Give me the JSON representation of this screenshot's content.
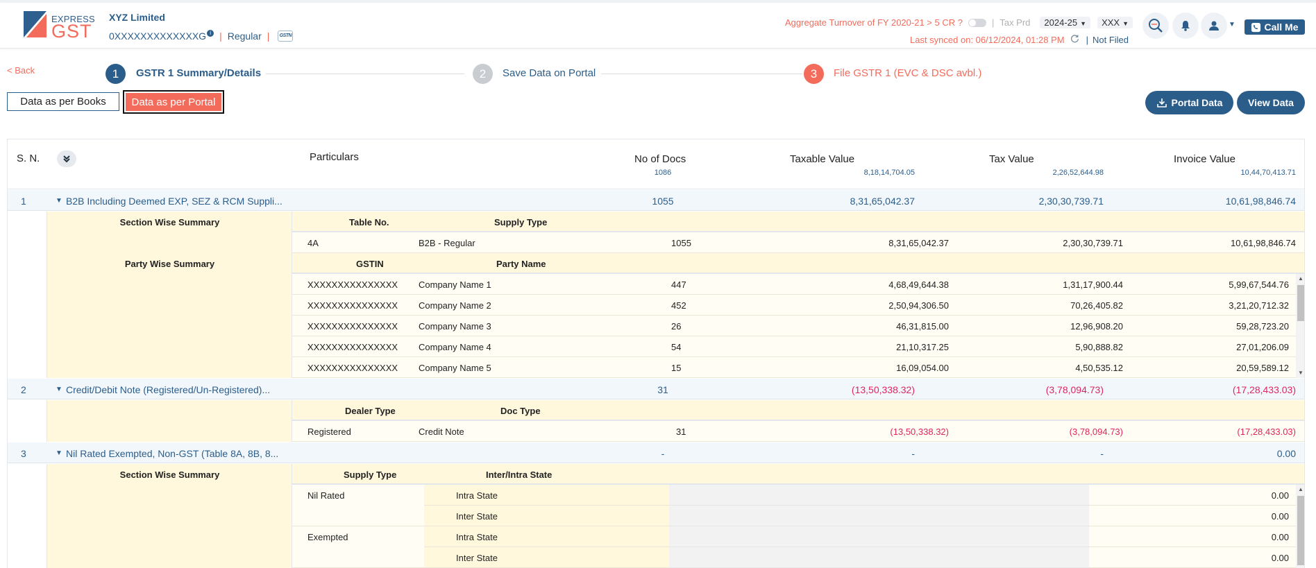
{
  "header": {
    "logo_express": "EXPRESS",
    "logo_gst": "GST",
    "company": "XYZ Limited",
    "gstin": "0XXXXXXXXXXXXXG",
    "info_glyph": "i",
    "separator": "|",
    "registration_type": "Regular",
    "gstn_badge": "GSTN",
    "turnover_text": "Aggregate Turnover of FY 2020-21 > 5 CR ?",
    "tax_period_label": "Tax Prd",
    "fy_value": "2024-25",
    "period_value": "XXX",
    "last_synced": "Last synced on: 06/12/2024, 01:28 PM",
    "filing_status": "Not Filed",
    "call_me": "Call Me"
  },
  "stepper": {
    "back": "< Back",
    "steps": [
      {
        "num": "1",
        "label": "GSTR 1 Summary/Details"
      },
      {
        "num": "2",
        "label": "Save Data on Portal"
      },
      {
        "num": "3",
        "label": "File GSTR 1 (EVC & DSC avbl.)"
      }
    ]
  },
  "tabs": {
    "books": "Data as per Books",
    "portal": "Data as per Portal"
  },
  "actions": {
    "portal_data": "Portal Data",
    "view_data": "View Data"
  },
  "colors": {
    "primary": "#2b5d8a",
    "accent": "#f26b5b",
    "negative": "#e0245e",
    "highlight": "#fff8dd"
  },
  "table": {
    "headers": {
      "sn": "S. N.",
      "particulars": "Particulars",
      "docs": "No of Docs",
      "taxable": "Taxable Value",
      "tax": "Tax Value",
      "invoice": "Invoice Value"
    },
    "totals": {
      "docs": "1086",
      "taxable": "8,18,14,704.05",
      "tax": "2,26,52,644.98",
      "invoice": "10,44,70,413.71"
    },
    "sections": [
      {
        "sn": "1",
        "title": "B2B Including Deemed EXP, SEZ & RCM Suppli...",
        "docs": "1055",
        "taxable": "8,31,65,042.37",
        "tax": "2,30,30,739.71",
        "invoice": "10,61,98,846.74",
        "section_summary": {
          "label": "Section Wise Summary",
          "col1": "Table No.",
          "col2": "Supply Type",
          "rows": [
            {
              "c1": "4A",
              "c2": "B2B - Regular",
              "docs": "1055",
              "taxable": "8,31,65,042.37",
              "tax": "2,30,30,739.71",
              "invoice": "10,61,98,846.74"
            }
          ]
        },
        "party_summary": {
          "label": "Party Wise Summary",
          "col1": "GSTIN",
          "col2": "Party Name",
          "rows": [
            {
              "c1": "XXXXXXXXXXXXXXX",
              "c2": "Company Name 1",
              "docs": "447",
              "taxable": "4,68,49,644.38",
              "tax": "1,31,17,900.44",
              "invoice": "5,99,67,544.76"
            },
            {
              "c1": "XXXXXXXXXXXXXXX",
              "c2": "Company Name 2",
              "docs": "452",
              "taxable": "2,50,94,306.50",
              "tax": "70,26,405.82",
              "invoice": "3,21,20,712.32"
            },
            {
              "c1": "XXXXXXXXXXXXXXX",
              "c2": "Company Name 3",
              "docs": "26",
              "taxable": "46,31,815.00",
              "tax": "12,96,908.20",
              "invoice": "59,28,723.20"
            },
            {
              "c1": "XXXXXXXXXXXXXXX",
              "c2": "Company Name 4",
              "docs": "54",
              "taxable": "21,10,317.25",
              "tax": "5,90,888.82",
              "invoice": "27,01,206.09"
            },
            {
              "c1": "XXXXXXXXXXXXXXX",
              "c2": "Company Name 5",
              "docs": "15",
              "taxable": "16,09,054.00",
              "tax": "4,50,535.12",
              "invoice": "20,59,589.12"
            }
          ]
        }
      },
      {
        "sn": "2",
        "title": "Credit/Debit Note (Registered/Un-Registered)...",
        "docs": "31",
        "taxable": "(13,50,338.32)",
        "tax": "(3,78,094.73)",
        "invoice": "(17,28,433.03)",
        "detail": {
          "col1": "Dealer Type",
          "col2": "Doc Type",
          "rows": [
            {
              "c1": "Registered",
              "c2": "Credit Note",
              "docs": "31",
              "taxable": "(13,50,338.32)",
              "tax": "(3,78,094.73)",
              "invoice": "(17,28,433.03)"
            }
          ]
        }
      },
      {
        "sn": "3",
        "title": "Nil Rated Exempted, Non-GST (Table 8A, 8B, 8...",
        "docs": "-",
        "taxable": "-",
        "tax": "-",
        "invoice": "0.00",
        "section_summary": {
          "label": "Section Wise Summary",
          "col1": "Supply Type",
          "col2": "Inter/Intra State",
          "rows": [
            {
              "supply": "Nil Rated",
              "state": "Intra State",
              "value": "0.00"
            },
            {
              "supply": "",
              "state": "Inter State",
              "value": "0.00"
            },
            {
              "supply": "Exempted",
              "state": "Intra State",
              "value": "0.00"
            },
            {
              "supply": "",
              "state": "Inter State",
              "value": "0.00"
            }
          ]
        }
      }
    ]
  }
}
